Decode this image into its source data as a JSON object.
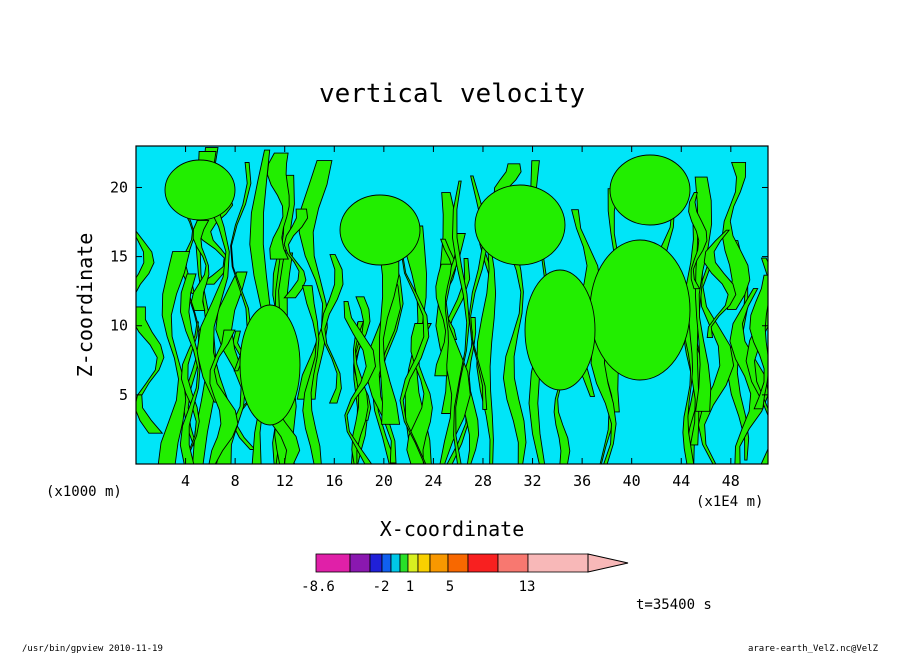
{
  "chart_data": {
    "type": "heatmap",
    "title": "vertical velocity",
    "xlabel": "X-coordinate",
    "ylabel": "Z-coordinate",
    "xlim": [
      0,
      51
    ],
    "ylim": [
      0,
      23
    ],
    "x_ticks": [
      "4",
      "8",
      "12",
      "16",
      "20",
      "24",
      "28",
      "32",
      "36",
      "40",
      "44",
      "48"
    ],
    "y_ticks": [
      "5",
      "10",
      "15",
      "20"
    ],
    "x_unit_left": "(x1000 m)",
    "x_unit_right": "(x1E4 m)",
    "time_label": "t=35400 s",
    "colorbar": {
      "labels": [
        "-8.6",
        "-2",
        "1",
        "5",
        "13"
      ],
      "colors": [
        "#e020a8",
        "#8a18b0",
        "#2020d8",
        "#1060f0",
        "#00c8e8",
        "#28e028",
        "#d8f020",
        "#f8d000",
        "#f89800",
        "#f86800",
        "#f82020",
        "#f87870",
        "#f8b8b8"
      ]
    },
    "field_colors": {
      "low": "#00e5f8",
      "high": "#22ee00",
      "contour": "#000000"
    }
  },
  "footer": {
    "left": "/usr/bin/gpview   2010-11-19",
    "right": "arare-earth_VelZ.nc@VelZ"
  }
}
